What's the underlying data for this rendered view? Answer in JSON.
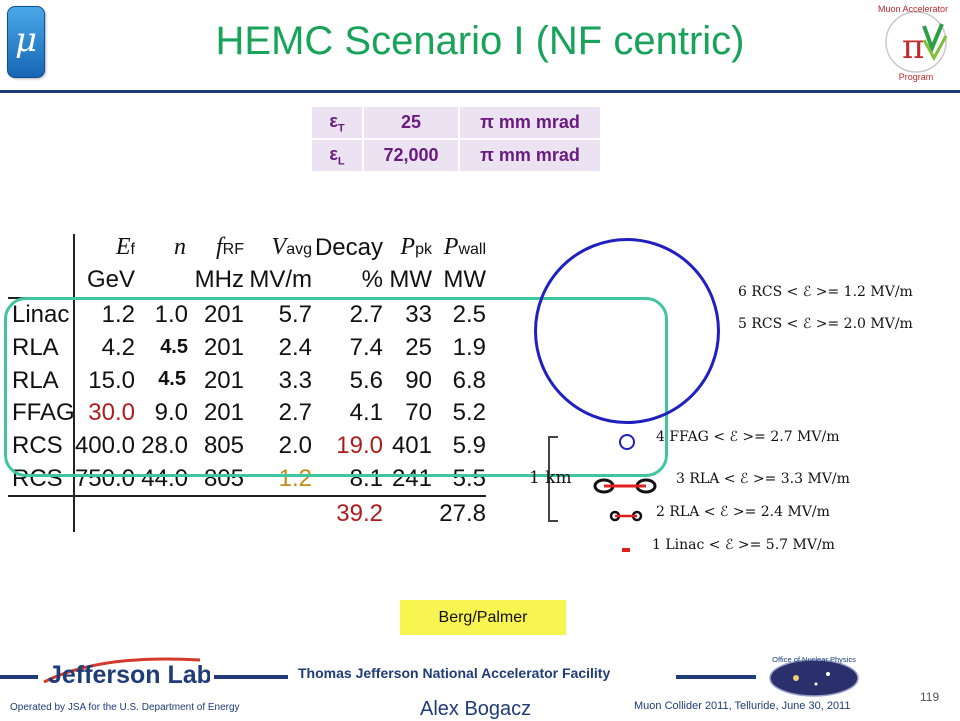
{
  "header": {
    "mu_symbol": "μ",
    "title": "HEMC Scenario I (NF centric)",
    "program_logo": {
      "line1": "Muon Accelerator",
      "line2": "Program",
      "symbol": "π"
    }
  },
  "emittance_table": [
    {
      "symbol": "ε",
      "sub": "T",
      "value": "25",
      "unit": "π mm mrad"
    },
    {
      "symbol": "ε",
      "sub": "L",
      "value": "72,000",
      "unit": "π mm mrad"
    }
  ],
  "parameter_table": {
    "header_row1": {
      "ef": "E",
      "ef_sub": "f",
      "n": "n",
      "frf": "f",
      "frf_sub": "RF",
      "vavg": "V",
      "vavg_sub": "avg",
      "decay": "Decay",
      "ppk": "P",
      "ppk_sub": "pk",
      "pwall": "P",
      "pwall_sub": "wall"
    },
    "header_row2": {
      "ef": "GeV",
      "frf": "MHz",
      "vavg": "MV/m",
      "decay": "%",
      "ppk": "MW",
      "pwall": "MW"
    },
    "rows": [
      {
        "stage": "Linac",
        "ef": "1.2",
        "n": "1.0",
        "frf": "201",
        "vavg": "5.7",
        "decay": "2.7",
        "ppk": "33",
        "pwall": "2.5"
      },
      {
        "stage": "RLA",
        "ef": "4.2",
        "n": "4.5",
        "frf": "201",
        "vavg": "2.4",
        "decay": "7.4",
        "ppk": "25",
        "pwall": "1.9"
      },
      {
        "stage": "RLA",
        "ef": "15.0",
        "n": "4.5",
        "frf": "201",
        "vavg": "3.3",
        "decay": "5.6",
        "ppk": "90",
        "pwall": "6.8"
      },
      {
        "stage": "FFAG",
        "ef": "30.0",
        "n": "9.0",
        "frf": "201",
        "vavg": "2.7",
        "decay": "4.1",
        "ppk": "70",
        "pwall": "5.2"
      },
      {
        "stage": "RCS",
        "ef": "400.0",
        "n": "28.0",
        "frf": "805",
        "vavg": "2.0",
        "decay": "19.0",
        "ppk": "401",
        "pwall": "5.9"
      },
      {
        "stage": "RCS",
        "ef": "750.0",
        "n": "44.0",
        "frf": "805",
        "vavg": "1.2",
        "decay": "8.1",
        "ppk": "241",
        "pwall": "5.5"
      }
    ],
    "totals": {
      "decay": "39.2",
      "pwall": "27.8"
    },
    "colors": {
      "highlight_red": "#b01c1c",
      "highlight_orange": "#c58b16",
      "box": "#3fc5a0"
    }
  },
  "diagram": {
    "labels": [
      "6 RCS < ℰ >= 1.2 MV/m",
      "5 RCS < ℰ >= 2.0 MV/m",
      "4 FFAG < ℰ >= 2.7 MV/m",
      "3  RLA < ℰ >= 3.3 MV/m",
      "2  RLA < ℰ >= 2.4 MV/m",
      "1 Linac < ℰ >= 5.7 MV/m"
    ],
    "scale": "1 km"
  },
  "credit": "Berg/Palmer",
  "footer": {
    "lab_logo": "Jefferson Lab",
    "facility": "Thomas Jefferson National Accelerator Facility",
    "office_logo": "Office of Nuclear Physics",
    "page_number": "119",
    "operated": "Operated by JSA for the U.S. Department of Energy",
    "author": "Alex Bogacz",
    "conference": "Muon Collider 2011, Telluride, June 30, 2011"
  }
}
